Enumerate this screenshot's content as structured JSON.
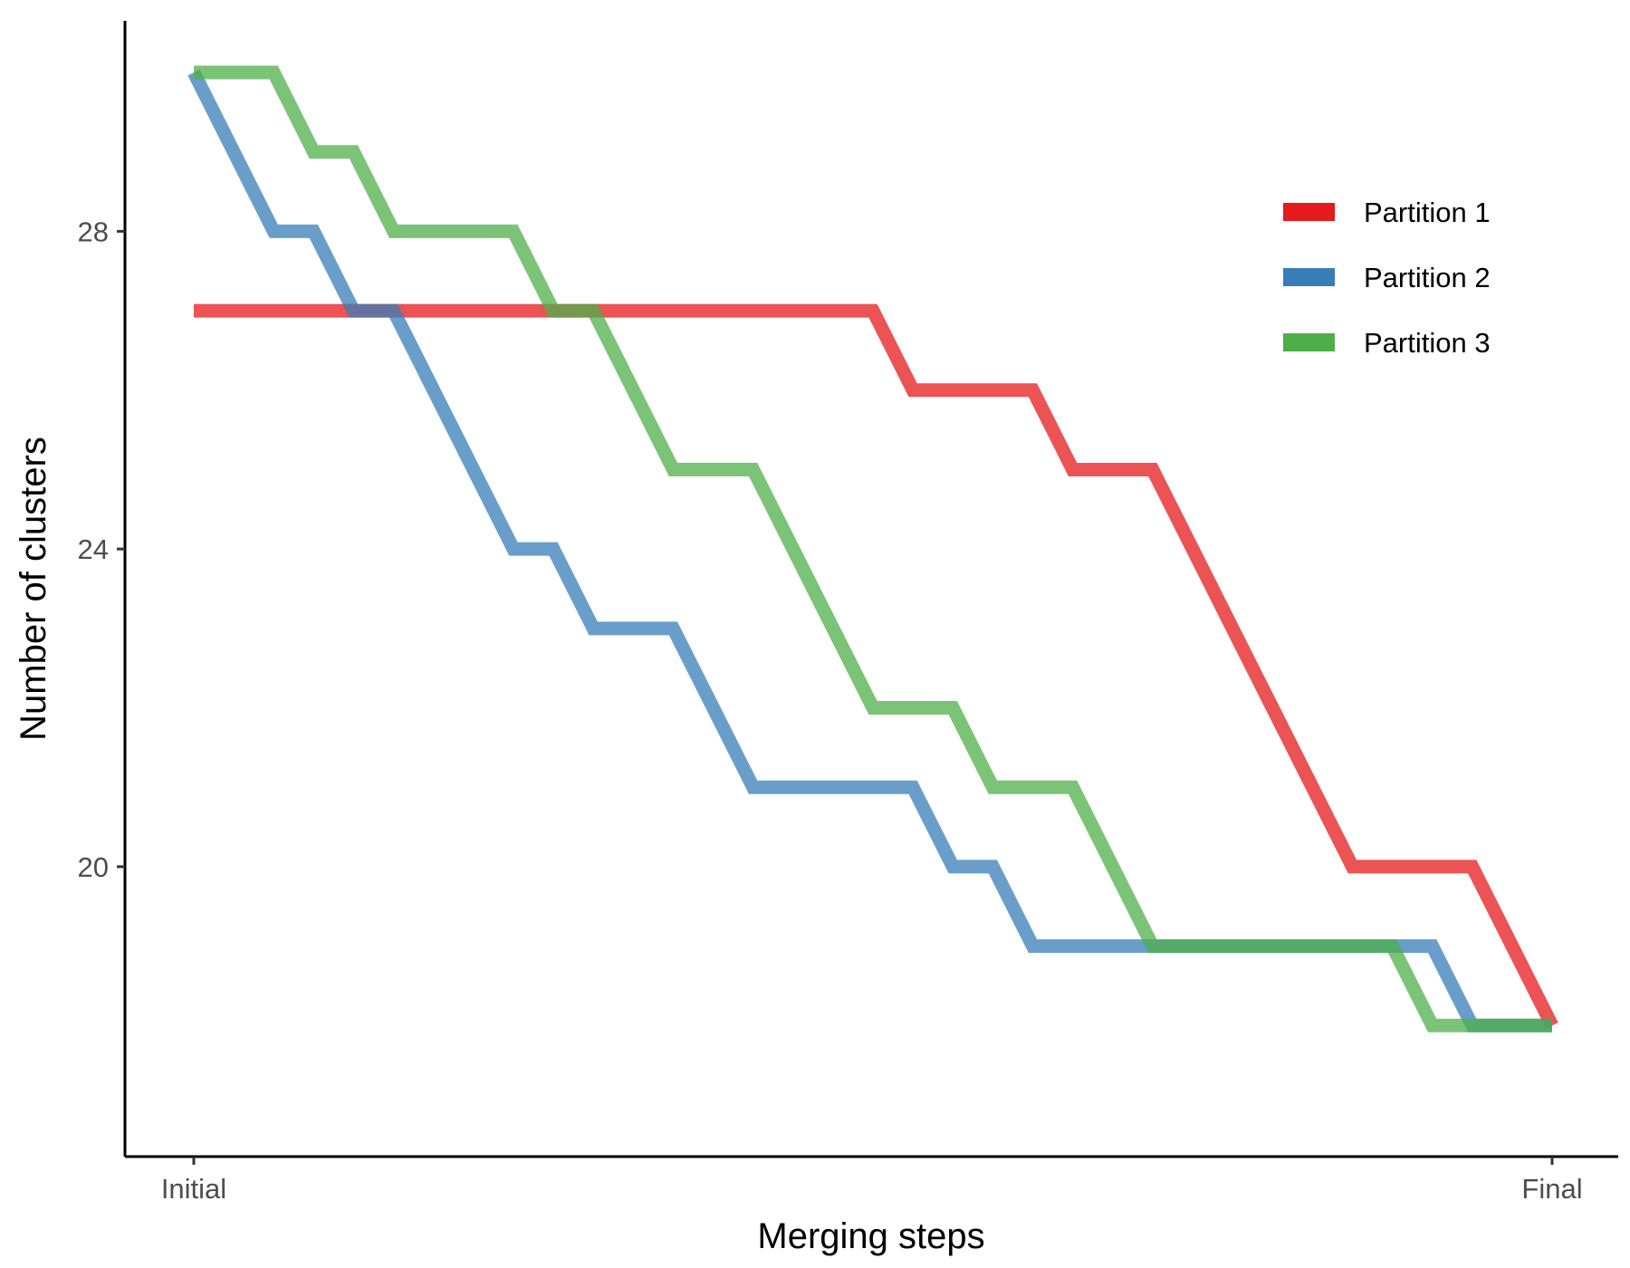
{
  "chart_data": {
    "type": "line",
    "title": "",
    "xlabel": "Merging steps",
    "ylabel": "Number of clusters",
    "x_tick_labels": [
      "Initial",
      "Final"
    ],
    "y_ticks": [
      20,
      24,
      28
    ],
    "y_tick_labels": [
      "20",
      "24",
      "28"
    ],
    "xlim": [
      0,
      34
    ],
    "ylim": [
      16.35,
      30.65
    ],
    "grid": false,
    "legend_position": "top-right",
    "x": [
      0,
      1,
      2,
      3,
      4,
      5,
      6,
      7,
      8,
      9,
      10,
      11,
      12,
      13,
      14,
      15,
      16,
      17,
      18,
      19,
      20,
      21,
      22,
      23,
      24,
      25,
      26,
      27,
      28,
      29,
      30,
      31,
      32,
      33,
      34
    ],
    "series": [
      {
        "name": "Partition 1",
        "color": "#E41A1C",
        "values": [
          27,
          27,
          27,
          27,
          27,
          27,
          27,
          27,
          27,
          27,
          27,
          27,
          27,
          27,
          27,
          27,
          27,
          27,
          26,
          26,
          26,
          26,
          25,
          25,
          25,
          24,
          23,
          22,
          21,
          20,
          20,
          20,
          20,
          19,
          18
        ]
      },
      {
        "name": "Partition 2",
        "color": "#377EB8",
        "values": [
          30,
          29,
          28,
          28,
          27,
          27,
          26,
          25,
          24,
          24,
          23,
          23,
          23,
          22,
          21,
          21,
          21,
          21,
          21,
          20,
          20,
          19,
          19,
          19,
          19,
          19,
          19,
          19,
          19,
          19,
          19,
          19,
          18,
          18,
          18
        ]
      },
      {
        "name": "Partition 3",
        "color": "#4DAF4A",
        "values": [
          30,
          30,
          30,
          29,
          29,
          28,
          28,
          28,
          28,
          27,
          27,
          26,
          25,
          25,
          25,
          24,
          23,
          22,
          22,
          22,
          21,
          21,
          21,
          20,
          19,
          19,
          19,
          19,
          19,
          19,
          19,
          18,
          18,
          18,
          18
        ]
      }
    ]
  }
}
